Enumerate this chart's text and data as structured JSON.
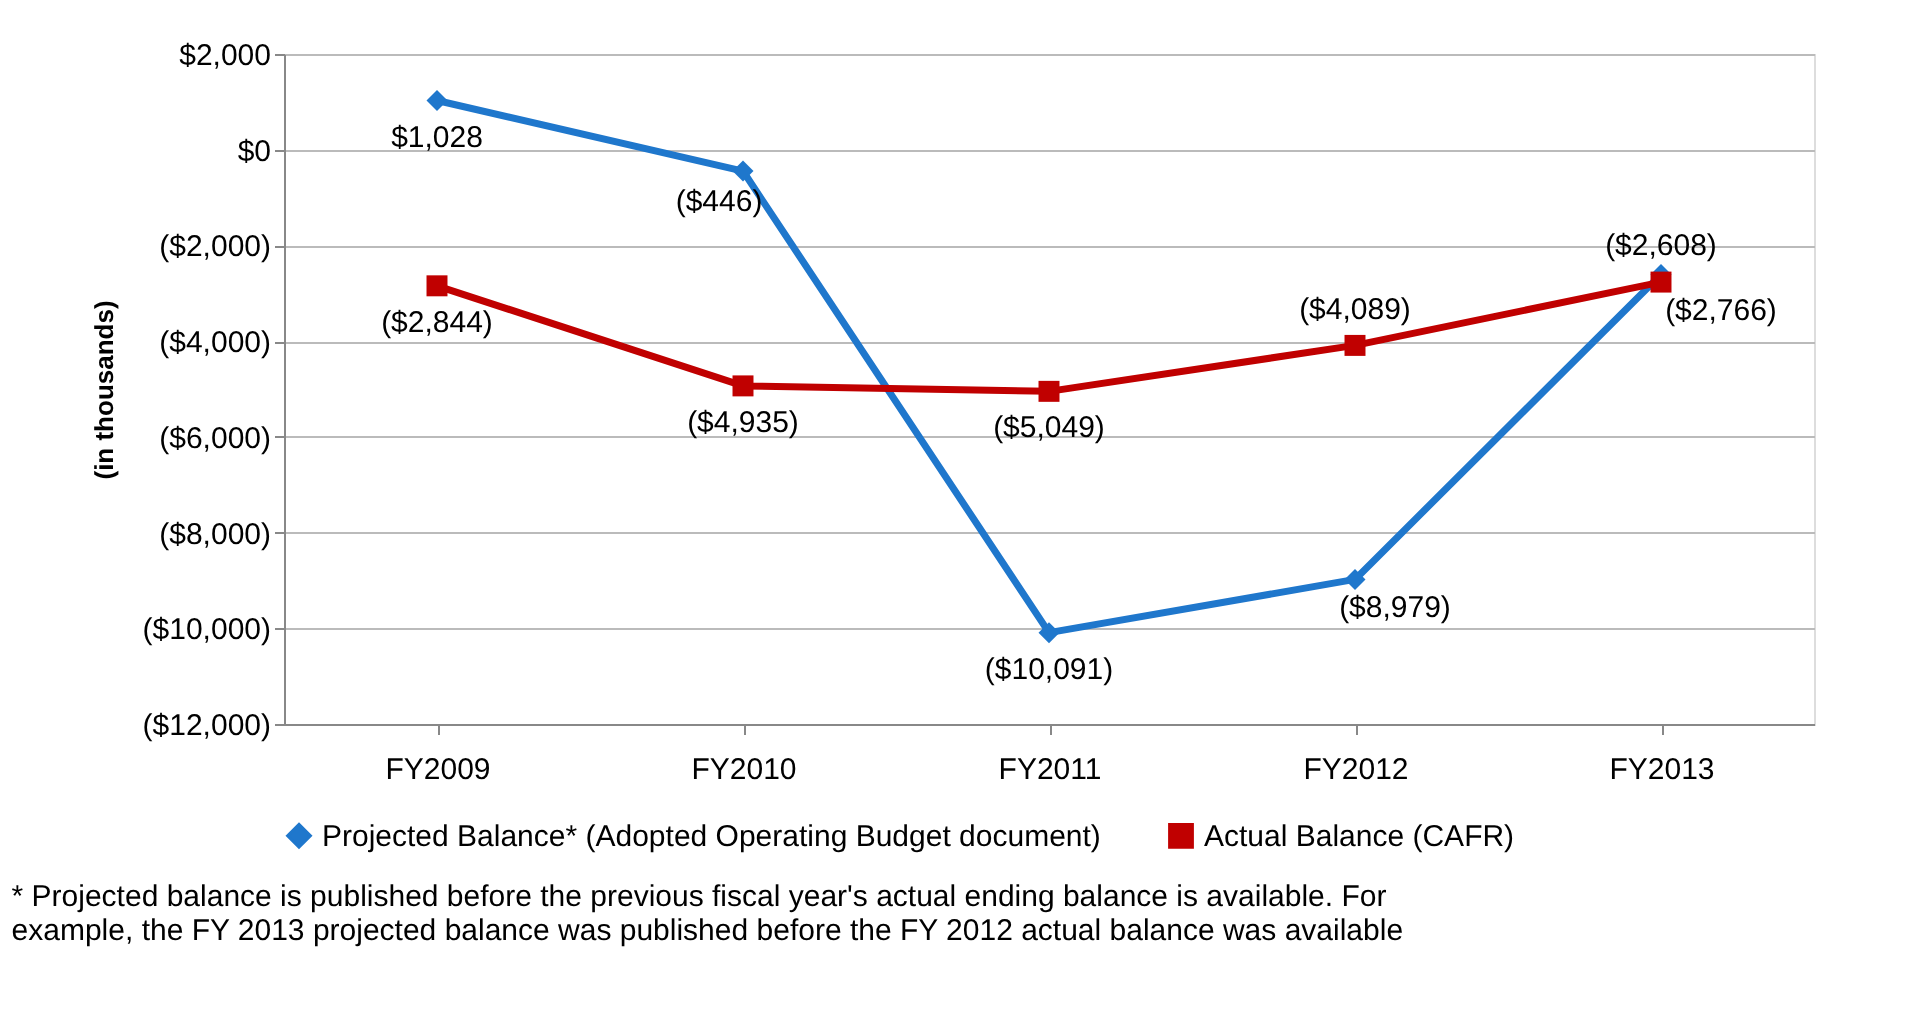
{
  "chart_data": {
    "type": "line",
    "ylabel": "(in thousands)",
    "categories": [
      "FY2009",
      "FY2010",
      "FY2011",
      "FY2012",
      "FY2013"
    ],
    "series": [
      {
        "name": "Projected Balance* (Adopted Operating Budget document)",
        "color": "#1f77cc",
        "marker": "diamond",
        "values": [
          1028,
          -446,
          -10091,
          -8979,
          -2608
        ],
        "value_labels": [
          "$1,028",
          "($446)",
          "($10,091)",
          "($8,979)",
          "($2,608)"
        ]
      },
      {
        "name": "Actual Balance (CAFR)",
        "color": "#c00000",
        "marker": "square",
        "values": [
          -2844,
          -4935,
          -5049,
          -4089,
          -2766
        ],
        "value_labels": [
          "($2,844)",
          "($4,935)",
          "($5,049)",
          "($4,089)",
          "($2,766)"
        ]
      }
    ],
    "ylim": [
      -12000,
      2000
    ],
    "yticks": [
      {
        "value": 2000,
        "label": "$2,000"
      },
      {
        "value": 0,
        "label": "$0"
      },
      {
        "value": -2000,
        "label": "($2,000)"
      },
      {
        "value": -4000,
        "label": "($4,000)"
      },
      {
        "value": -6000,
        "label": "($6,000)"
      },
      {
        "value": -8000,
        "label": "($8,000)"
      },
      {
        "value": -10000,
        "label": "($10,000)"
      },
      {
        "value": -12000,
        "label": "($12,000)"
      }
    ],
    "grid": "y",
    "legend": "bottom",
    "line_style": "solid",
    "annotations": [
      "* Projected balance is published before the previous fiscal year's actual ending balance is available. For\nexample, the FY 2013 projected balance was published before the FY 2012 actual balance was available"
    ]
  }
}
